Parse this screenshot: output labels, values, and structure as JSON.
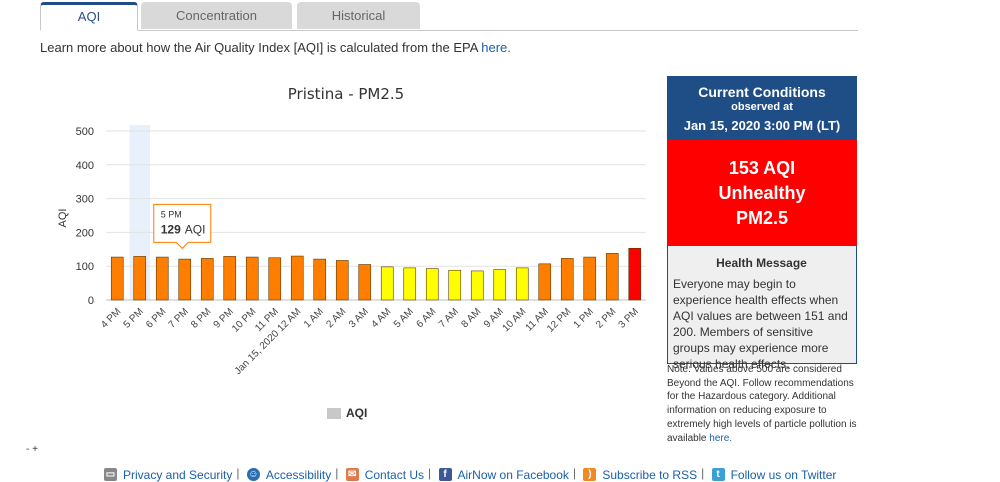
{
  "tabs": [
    "AQI",
    "Concentration",
    "Historical"
  ],
  "intro": {
    "text": "Learn more about how the Air Quality Index [AQI] is calculated from the EPA ",
    "link": "here."
  },
  "chart_data": {
    "type": "bar",
    "title": "Pristina - PM2.5",
    "ylabel": "AQI",
    "ylim": [
      0,
      500
    ],
    "yticks": [
      0,
      100,
      200,
      300,
      400,
      500
    ],
    "categories": [
      "4 PM",
      "5 PM",
      "6 PM",
      "7 PM",
      "8 PM",
      "9 PM",
      "10 PM",
      "11 PM",
      "Jan 15, 2020 12 AM",
      "1 AM",
      "2 AM",
      "3 AM",
      "4 AM",
      "5 AM",
      "6 AM",
      "7 AM",
      "8 AM",
      "9 AM",
      "10 AM",
      "11 AM",
      "12 PM",
      "1 PM",
      "2 PM",
      "3 PM"
    ],
    "values": [
      127,
      129,
      127,
      121,
      123,
      129,
      127,
      125,
      130,
      121,
      117,
      105,
      98,
      95,
      93,
      88,
      86,
      90,
      95,
      107,
      123,
      127,
      138,
      153
    ],
    "colors": [
      "#ff7e00",
      "#ff7e00",
      "#ff7e00",
      "#ff7e00",
      "#ff7e00",
      "#ff7e00",
      "#ff7e00",
      "#ff7e00",
      "#ff7e00",
      "#ff7e00",
      "#ff7e00",
      "#ff7e00",
      "#ffff00",
      "#ffff00",
      "#ffff00",
      "#ffff00",
      "#ffff00",
      "#ffff00",
      "#ffff00",
      "#ff7e00",
      "#ff7e00",
      "#ff7e00",
      "#ff7e00",
      "#ff0000"
    ],
    "legend": [
      "AQI"
    ],
    "legend_position": "bottom-center",
    "highlighted_index": 1,
    "tooltip": {
      "label": "5 PM",
      "value": "129",
      "unit": "AQI"
    }
  },
  "current": {
    "title": "Current Conditions",
    "observed": "observed at",
    "datetime": "Jan 15, 2020 3:00 PM (LT)",
    "aqi": "153 AQI",
    "category": "Unhealthy",
    "pollutant": "PM2.5",
    "color": "#ff0000",
    "health_title": "Health Message",
    "health_text": "Everyone may begin to experience health effects when AQI values are between 151 and 200. Members of sensitive groups may experience more serious health effects."
  },
  "note": {
    "text": "Note: Values above 500 are considered Beyond the AQI. Follow recommendations for the Hazardous category. Additional information on reducing exposure to extremely high levels of particle pollution is available ",
    "link": "here."
  },
  "misc": {
    "tiny_text": "- +"
  },
  "footer": {
    "links": [
      "Privacy and Security",
      "Accessibility",
      "Contact Us",
      "AirNow on Facebook",
      "Subscribe to RSS",
      "Follow us on Twitter"
    ],
    "icons": [
      "printer-icon",
      "accessibility-icon",
      "mail-icon",
      "facebook-icon",
      "rss-icon",
      "twitter-icon"
    ]
  }
}
